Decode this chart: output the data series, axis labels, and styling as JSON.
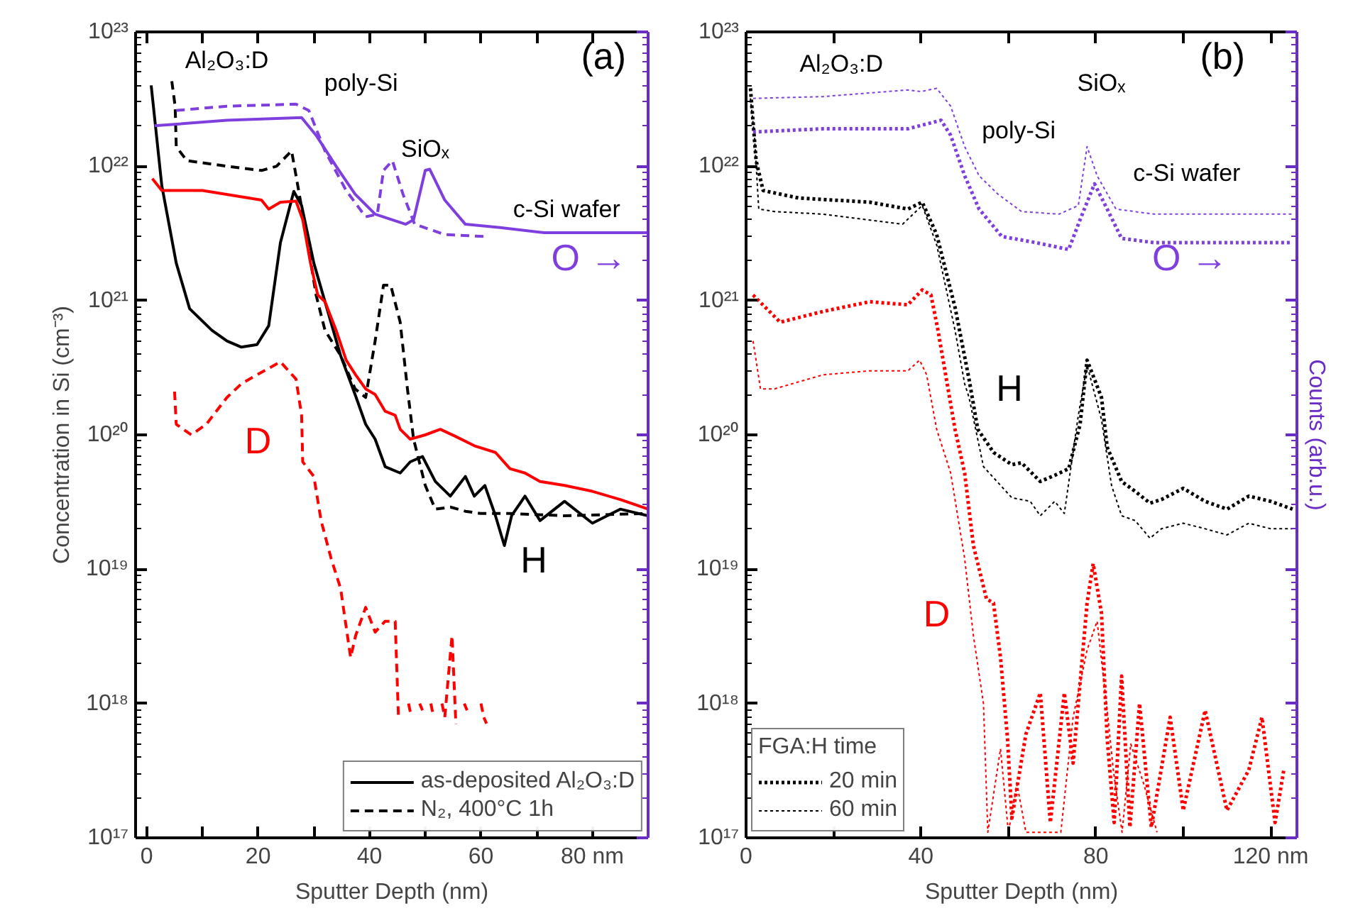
{
  "chart_data": [
    {
      "type": "line",
      "xlabel": "Sputter Depth (nm)",
      "ylabel": "Concentration in Si (cm⁻³)",
      "log": "y",
      "legend": "bottom right",
      "xlim": [
        -2,
        90
      ],
      "ylim": [
        1e+17,
        1e+23
      ],
      "xticks": [
        0,
        {
          "value": 10,
          "label": null
        },
        20,
        {
          "value": 30,
          "label": null
        },
        40,
        {
          "value": 50,
          "label": null
        },
        60,
        {
          "value": 70,
          "label": null
        },
        {
          "value": 80,
          "label": "80 nm"
        }
      ],
      "yticks": [
        {
          "value": 1e+17,
          "label": "10¹⁷"
        },
        {
          "value": 1e+18,
          "label": "10¹⁸"
        },
        {
          "value": 1e+19,
          "label": "10¹⁹"
        },
        {
          "value": 1e+20,
          "label": "10²⁰"
        },
        {
          "value": 1e+21,
          "label": "10²¹"
        },
        {
          "value": 1e+22,
          "label": "10²²"
        },
        {
          "value": 1e+23,
          "label": "10²³"
        }
      ],
      "series": [
        {
          "name": "as-deposited Al₂O₃:D",
          "color": "#000000",
          "line_style": "solid",
          "x": [
            0.8,
            2.7,
            5.3,
            7.7,
            11.7,
            14.4,
            17,
            19.8,
            21.9,
            24,
            26.4,
            27.8,
            30,
            32,
            34.8,
            37.4,
            39.3,
            41,
            42.8,
            45.5,
            47.3,
            49.5,
            51.8,
            54.5,
            57.2,
            58.8,
            60.7,
            62.6,
            64.2,
            65.5,
            67.9,
            70.6,
            75,
            80,
            85,
            90
          ],
          "values": [
            4e+22,
            7.2e+21,
            1.9e+21,
            8.7e+20,
            6e+20,
            5e+20,
            4.5e+20,
            4.7e+20,
            6.5e+20,
            2.7e+21,
            6.5e+21,
            5.1e+21,
            1.9e+21,
            9.8e+20,
            3.9e+20,
            2e+20,
            1.2e+20,
            9.3e+19,
            5.8e+19,
            5.2e+19,
            6.3e+19,
            6.9e+19,
            4.5e+19,
            3.5e+19,
            4.9e+19,
            3.5e+19,
            4.2e+19,
            2.5e+19,
            1.5e+19,
            2.5e+19,
            3.5e+19,
            2.3e+19,
            3.2e+19,
            2.2e+19,
            2.8e+19,
            2.5e+19
          ]
        },
        {
          "name": "N₂, 400°C 1h",
          "color": "#000000",
          "line_style": "dashed",
          "x": [
            4.5,
            5.1,
            5.3,
            7.2,
            14.4,
            20.6,
            23.3,
            26,
            26.8,
            28.6,
            30.4,
            32,
            34.8,
            37.4,
            39.3,
            41,
            42.5,
            43.8,
            45.5,
            46.8,
            47.9,
            50,
            51.8,
            54.5,
            57.2,
            59.9,
            65,
            75,
            90
          ],
          "values": [
            4.3e+22,
            2.8e+22,
            1.4e+22,
            1.1e+22,
            1e+22,
            9.3e+21,
            1e+22,
            1.3e+22,
            8.5e+21,
            3.2e+21,
            1.1e+21,
            6e+20,
            3.9e+20,
            2.2e+20,
            1.9e+20,
            5e+20,
            1.3e+21,
            1.3e+21,
            6.9e+20,
            2.2e+20,
            9.3e+19,
            4.2e+19,
            2.8e+19,
            2.9e+19,
            2.7e+19,
            2.6e+19,
            2.6e+19,
            2.5e+19,
            2.6e+19
          ]
        },
        {
          "color": "#ff0000",
          "line_style": "solid",
          "x": [
            1,
            2.7,
            10,
            20.6,
            21.9,
            24,
            26.8,
            28,
            29.4,
            30.7,
            32,
            34,
            35.8,
            37.5,
            39.3,
            41,
            42.8,
            44.6,
            45.5,
            47.3,
            50,
            52.7,
            55.3,
            58.8,
            62.6,
            65.2,
            67.9,
            70.6,
            75,
            80,
            85,
            90
          ],
          "values": [
            8.1e+21,
            6.6e+21,
            6.6e+21,
            5.6e+21,
            4.8e+21,
            5.4e+21,
            5.5e+21,
            4e+21,
            1.9e+21,
            1.1e+21,
            9.8e+20,
            6e+20,
            3.6e+20,
            2.8e+20,
            2.2e+20,
            2e+20,
            1.5e+20,
            1.4e+20,
            1.1e+20,
            9.3e+19,
            1e+20,
            1.1e+20,
            9.8e+19,
            8.3e+19,
            7.4e+19,
            5.6e+19,
            5.2e+19,
            4.5e+19,
            4.2e+19,
            3.8e+19,
            3.3e+19,
            2.8e+19
          ]
        },
        {
          "color": "#ff0000",
          "line_style": "dashed",
          "x": [
            5,
            5.3,
            8,
            10.7,
            14.4,
            17,
            19.8,
            24,
            26.8,
            27.8,
            28,
            30,
            31.3,
            33.1,
            34.8,
            36.6,
            37.5,
            39.3,
            41,
            42.8,
            44.6,
            45.2,
            46,
            47,
            47.5,
            48,
            49,
            49.5,
            50,
            51,
            51.5,
            52,
            53,
            53.5,
            54.8,
            55.5,
            56,
            57,
            57.5,
            58,
            60,
            60.5,
            61
          ],
          "values": [
            2.1e+20,
            1.2e+20,
            1e+20,
            1.2e+20,
            1.9e+20,
            2.4e+20,
            2.8e+20,
            3.5e+20,
            2.6e+20,
            1.4e+20,
            6.3e+19,
            4.9e+19,
            2.3e+19,
            1.2e+19,
            7.2e+18,
            2.2e+18,
            3.2e+18,
            5.2e+18,
            3.4e+18,
            4.1e+18,
            4.1e+18,
            7.6e+17,
            null,
            1e+18,
            7.9e+17,
            null,
            1e+18,
            8.9e+17,
            null,
            1e+18,
            7.9e+17,
            null,
            1e+18,
            7.9e+17,
            3.2e+18,
            7e+17,
            null,
            1e+18,
            8.9e+17,
            null,
            1e+18,
            7.9e+17,
            7.1e+17
          ]
        },
        {
          "color": "#7f3fdf",
          "line_style": "solid",
          "x": [
            1.4,
            14.4,
            27.8,
            30.4,
            34,
            37.4,
            41,
            46.5,
            47.9,
            50,
            50.8,
            53.5,
            57.2,
            63.4,
            71.4,
            80,
            90
          ],
          "values": [
            2e+22,
            2.2e+22,
            2.3e+22,
            1.7e+22,
            1e+22,
            6.2e+21,
            4.4e+21,
            3.7e+21,
            4e+21,
            9.3e+21,
            9.5e+21,
            5.6e+21,
            3.7e+21,
            3.5e+21,
            3.2e+21,
            3.2e+21,
            3.2e+21
          ]
        },
        {
          "color": "#7f3fdf",
          "line_style": "dashed",
          "x": [
            5.3,
            14.4,
            26.8,
            29.1,
            32,
            35.8,
            39.3,
            41.4,
            42.5,
            44.1,
            46,
            48.1,
            53.5,
            60.7
          ],
          "values": [
            2.6e+22,
            2.8e+22,
            2.9e+22,
            2.6e+22,
            1.3e+22,
            6.6e+21,
            4.2e+21,
            4.4e+21,
            9.3e+21,
            1.1e+22,
            6.2e+21,
            3.7e+21,
            3.1e+21,
            3e+21
          ]
        }
      ],
      "annotations": [
        "Al₂O₃:D",
        "poly-Si",
        "SiOₓ",
        "c-Si wafer",
        "(a)",
        "O →",
        "D",
        "H"
      ]
    },
    {
      "type": "line",
      "xlabel": "Sputter Depth (nm)",
      "y2label": "Counts (arb.u.)",
      "log": "y",
      "legend": "bottom left",
      "legend_title": "FGA:H time",
      "xlim": [
        0,
        126
      ],
      "ylim": [
        1e+17,
        1e+23
      ],
      "xticks": [
        0,
        {
          "value": 20,
          "label": null
        },
        40,
        {
          "value": 60,
          "label": null
        },
        80,
        {
          "value": 100,
          "label": null
        },
        {
          "value": 120,
          "label": "120 nm"
        }
      ],
      "yticks": [
        {
          "value": 1e+17,
          "label": "10¹⁷"
        },
        {
          "value": 1e+18,
          "label": "10¹⁸"
        },
        {
          "value": 1e+19,
          "label": "10¹⁹"
        },
        {
          "value": 1e+20,
          "label": "10²⁰"
        },
        {
          "value": 1e+21,
          "label": "10²¹"
        },
        {
          "value": 1e+22,
          "label": "10²²"
        },
        {
          "value": 1e+23,
          "label": "10²³"
        }
      ],
      "series": [
        {
          "name": "20 min",
          "color": "#000000",
          "line_style": "dotted",
          "x": [
            1,
            2.3,
            3.9,
            12,
            28.3,
            37,
            40.3,
            43.6,
            47.8,
            51,
            53,
            56.6,
            60.8,
            63,
            67.3,
            70.6,
            73.8,
            76.4,
            78,
            81.3,
            82.6,
            85.9,
            89,
            92.4,
            95,
            100,
            105,
            110,
            115,
            120,
            125
          ],
          "values": [
            3.8e+22,
            1.1e+22,
            6.6e+21,
            5.8e+21,
            5.4e+21,
            4.8e+21,
            5.4e+21,
            3.1e+21,
            8.9e+20,
            2.6e+20,
            1.1e+20,
            7.4e+19,
            6e+19,
            6.2e+19,
            4.5e+19,
            5e+19,
            5.6e+19,
            1.2e+20,
            3.6e+20,
            1.9e+20,
            8.1e+19,
            4.5e+19,
            3.8e+19,
            3.1e+19,
            3.3e+19,
            4e+19,
            3.2e+19,
            2.8e+19,
            3.5e+19,
            3.2e+19,
            2.8e+19
          ]
        },
        {
          "name": "60 min",
          "color": "#000000",
          "line_style": "dotted",
          "x": [
            1,
            1.9,
            2.9,
            6.5,
            17.6,
            35.8,
            40.3,
            43.6,
            47.8,
            50,
            51,
            54.3,
            60.8,
            65,
            67.3,
            70.6,
            72.8,
            76,
            78,
            81.3,
            83.6,
            85.9,
            89,
            92.4,
            95,
            100,
            105,
            110,
            115,
            120,
            125
          ],
          "values": [
            3.2e+22,
            1.7e+22,
            4.8e+21,
            4.6e+21,
            4.4e+21,
            3.7e+21,
            5.1e+21,
            2.6e+21,
            6e+20,
            2.4e+20,
            1.9e+20,
            5.8e+19,
            3.4e+19,
            3.2e+19,
            2.5e+19,
            3.2e+19,
            2.6e+19,
            1.4e+20,
            3.3e+20,
            1.3e+20,
            4.2e+19,
            2.5e+19,
            2.3e+19,
            1.7e+19,
            2e+19,
            2.2e+19,
            2e+19,
            1.8e+19,
            2.2e+19,
            2e+19,
            2e+19
          ]
        },
        {
          "color": "#ff0000",
          "line_style": "dotted",
          "x": [
            1.6,
            7.8,
            17.6,
            28.3,
            37,
            40.3,
            42.3,
            43.9,
            47.8,
            50,
            52,
            55,
            56.6,
            58.2,
            59.8,
            60.8,
            64,
            67.3,
            69.6,
            72.8,
            74.8,
            78,
            79.4,
            81.3,
            82.6,
            84.2,
            85.9,
            87.8,
            90,
            92.7,
            97,
            100,
            105,
            110,
            115,
            118,
            121,
            123
          ],
          "values": [
            1.1e+21,
            6.9e+20,
            8.3e+20,
            9.8e+20,
            9.3e+20,
            1.2e+21,
            1.1e+21,
            6e+20,
            1.1e+20,
            5.2e+19,
            1.5e+19,
            6e+18,
            5.6e+18,
            2.2e+18,
            5.5e+17,
            1.4e+17,
            5.9e+17,
            1.2e+18,
            1.3e+17,
            1.2e+18,
            3.6e+17,
            5.6e+18,
            1.1e+19,
            4.7e+18,
            5.5e+17,
            1.3e+17,
            1.6e+18,
            1.2e+17,
            1e+18,
            1.2e+17,
            7.9e+17,
            1.6e+17,
            8.9e+17,
            1.6e+17,
            3.2e+17,
            7.9e+17,
            1.3e+17,
            3.2e+17
          ]
        },
        {
          "color": "#ff0000",
          "line_style": "dotted",
          "x": [
            1.6,
            3.3,
            6.5,
            17.6,
            28.3,
            37,
            39.7,
            41.3,
            43.6,
            46.8,
            50,
            52,
            54.3,
            55.3,
            58.2,
            60,
            62,
            64,
            72,
            74.8,
            78,
            80.3,
            82.6,
            84,
            86,
            88,
            91,
            94
          ],
          "values": [
            5e+20,
            2.2e+20,
            2.2e+20,
            2.8e+20,
            3e+20,
            3e+20,
            3.6e+20,
            2.8e+20,
            1.1e+20,
            5.2e+19,
            1.2e+19,
            3.2e+18,
            1e+18,
            1.1e+17,
            4.6e+17,
            1.1e+17,
            2.5e+17,
            1.1e+17,
            1.1e+17,
            7.9e+17,
            2.5e+18,
            4.1e+18,
            8.9e+17,
            3.2e+17,
            1.1e+17,
            5e+17,
            2.5e+17,
            1.1e+17
          ]
        },
        {
          "color": "#7f3fdf",
          "line_style": "dotted",
          "x": [
            1.6,
            17.6,
            37,
            44.6,
            46.8,
            50,
            53.3,
            58.5,
            66.3,
            73.8,
            76.4,
            79.7,
            82.6,
            85.9,
            93.3,
            125
          ],
          "values": [
            1.8e+22,
            1.9e+22,
            1.9e+22,
            2.2e+22,
            1.7e+22,
            8.5e+21,
            4.8e+21,
            3e+21,
            2.7e+21,
            2.4e+21,
            4e+21,
            7.4e+21,
            4.8e+21,
            2.9e+21,
            2.7e+21,
            2.7e+21
          ]
        },
        {
          "color": "#7f3fdf",
          "line_style": "dotted",
          "x": [
            1.6,
            17.6,
            37,
            40,
            43.6,
            46.8,
            50,
            53.3,
            57.6,
            63,
            71.6,
            76,
            78,
            80.3,
            84.6,
            93.3,
            125
          ],
          "values": [
            3.2e+22,
            3.3e+22,
            3.7e+22,
            3.6e+22,
            3.8e+22,
            2.8e+22,
            1.4e+22,
            8.5e+21,
            6.2e+21,
            4.6e+21,
            4.4e+21,
            5.1e+21,
            1.4e+22,
            8.5e+21,
            4.8e+21,
            4.4e+21,
            4.4e+21
          ]
        }
      ],
      "annotations": [
        "Al₂O₃:D",
        "poly-Si",
        "SiOₓ",
        "c-Si wafer",
        "(b)",
        "O →",
        "H",
        "D"
      ]
    }
  ]
}
